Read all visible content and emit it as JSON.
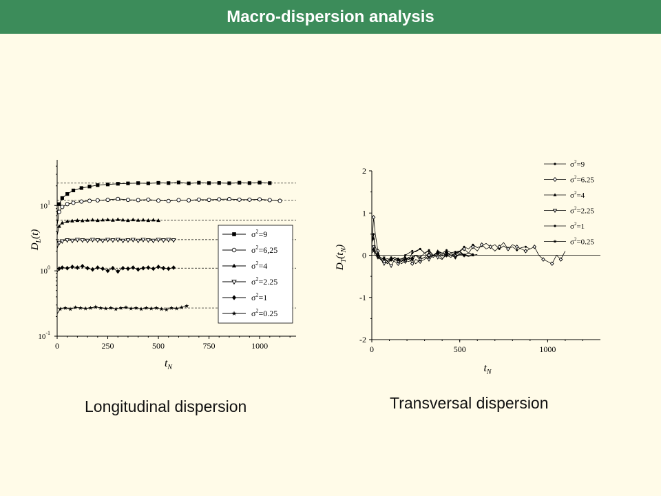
{
  "header": {
    "title": "Macro-dispersion analysis"
  },
  "captions": {
    "left": "Longitudinal dispersion",
    "right": "Transversal dispersion"
  },
  "chart_data": [
    {
      "type": "line",
      "yscale": "log",
      "xlim": [
        0,
        1180
      ],
      "ylim": [
        0.1,
        50
      ],
      "xticks": [
        0,
        250,
        500,
        750,
        1000
      ],
      "xlabel": "t_N",
      "ylabel": "D_L(t)",
      "yticks": [
        {
          "value": 10,
          "base": "10",
          "exp": "1"
        },
        {
          "value": 1,
          "base": "10",
          "exp": "0"
        },
        {
          "value": 0.1,
          "base": "10",
          "exp": "-1"
        }
      ],
      "legend_position": "bottom-right",
      "reference_lines": [
        22,
        12,
        6,
        3,
        1.1,
        0.27
      ],
      "series": [
        {
          "name": "σ²=9",
          "marker": "square-filled",
          "x": [
            0,
            10,
            25,
            50,
            80,
            120,
            160,
            200,
            250,
            300,
            350,
            400,
            450,
            500,
            550,
            600,
            650,
            700,
            750,
            800,
            850,
            900,
            950,
            1000,
            1050
          ],
          "y": [
            7,
            10.5,
            13,
            15,
            17,
            18.5,
            19.5,
            20.5,
            21,
            21.5,
            21.8,
            22,
            21.8,
            22.2,
            22,
            22.5,
            21.8,
            22.3,
            22,
            22.1,
            21.9,
            22.3,
            22,
            22.4,
            22
          ]
        },
        {
          "name": "σ²=6,25",
          "marker": "circle-open",
          "x": [
            0,
            10,
            25,
            50,
            80,
            120,
            160,
            200,
            250,
            300,
            350,
            400,
            450,
            500,
            550,
            600,
            650,
            700,
            750,
            800,
            850,
            900,
            950,
            1000,
            1050,
            1100
          ],
          "y": [
            5,
            8,
            9.5,
            10.5,
            11,
            11.5,
            11.8,
            12,
            12.2,
            12.6,
            12.2,
            12.1,
            12.3,
            11.9,
            11.7,
            12.1,
            12,
            12.3,
            12.2,
            12.4,
            12.5,
            12.3,
            12.3,
            12.4,
            12.1,
            11.8
          ]
        },
        {
          "name": "σ²=4",
          "marker": "triangle-up-filled",
          "x": [
            0,
            10,
            25,
            50,
            75,
            100,
            125,
            150,
            175,
            200,
            225,
            250,
            275,
            300,
            325,
            350,
            375,
            400,
            425,
            450,
            475,
            500
          ],
          "y": [
            3.5,
            4.8,
            5.4,
            5.7,
            5.8,
            5.9,
            5.85,
            5.95,
            6,
            5.9,
            6,
            6.05,
            5.95,
            6.1,
            6,
            5.9,
            6.05,
            5.95,
            6,
            5.9,
            6,
            5.9
          ]
        },
        {
          "name": "σ²=2.25",
          "marker": "triangle-down-open",
          "x": [
            0,
            10,
            25,
            50,
            75,
            100,
            125,
            150,
            175,
            200,
            225,
            250,
            275,
            300,
            325,
            350,
            375,
            400,
            425,
            450,
            475,
            500,
            525,
            550,
            575
          ],
          "y": [
            2.2,
            2.7,
            2.85,
            2.95,
            2.9,
            3,
            2.95,
            2.9,
            3,
            2.95,
            2.9,
            3,
            2.95,
            3,
            2.9,
            2.95,
            3,
            2.9,
            3,
            2.95,
            2.9,
            3,
            2.95,
            3,
            2.95
          ]
        },
        {
          "name": "σ²=1",
          "marker": "diamond-filled",
          "x": [
            0,
            10,
            25,
            50,
            75,
            100,
            125,
            150,
            175,
            200,
            225,
            250,
            275,
            300,
            325,
            350,
            375,
            400,
            425,
            450,
            475,
            500,
            525,
            550,
            575
          ],
          "y": [
            0.95,
            1.08,
            1.12,
            1.1,
            1.15,
            1.12,
            1.18,
            1.1,
            1.05,
            1.12,
            1.08,
            1.0,
            1.1,
            0.98,
            1.1,
            1.08,
            1.12,
            1.05,
            1.1,
            1.12,
            1.08,
            1.15,
            1.1,
            1.08,
            1.12
          ]
        },
        {
          "name": "σ²=0.25",
          "marker": "star",
          "x": [
            0,
            15,
            40,
            65,
            90,
            115,
            140,
            165,
            190,
            215,
            240,
            265,
            290,
            315,
            340,
            365,
            390,
            415,
            440,
            465,
            490,
            515,
            540,
            565,
            590,
            615,
            640
          ],
          "y": [
            0.22,
            0.26,
            0.27,
            0.26,
            0.275,
            0.27,
            0.265,
            0.27,
            0.28,
            0.27,
            0.265,
            0.27,
            0.26,
            0.27,
            0.275,
            0.265,
            0.27,
            0.26,
            0.27,
            0.265,
            0.27,
            0.26,
            0.255,
            0.27,
            0.265,
            0.275,
            0.29
          ]
        }
      ]
    },
    {
      "type": "line",
      "xlim": [
        0,
        1300
      ],
      "ylim": [
        -2,
        2
      ],
      "xticks": [
        0,
        500,
        1000
      ],
      "yticks": [
        2,
        1,
        0,
        -1,
        -2
      ],
      "xlabel": "t_N",
      "ylabel": "D_T(t_N)",
      "legend_position": "top-right",
      "reference_lines": [
        0
      ],
      "series": [
        {
          "name": "σ²=9",
          "marker": "dot",
          "x": [
            0,
            10,
            20,
            35,
            50,
            70,
            90,
            110,
            130,
            150,
            170,
            190,
            210,
            230,
            250,
            275,
            300,
            325,
            350,
            375,
            400,
            425,
            450,
            475,
            500,
            525,
            550,
            575,
            600,
            625,
            650,
            675,
            700,
            725,
            750,
            775,
            800,
            825,
            850,
            875,
            900
          ],
          "y": [
            0.3,
            0.5,
            0.1,
            -0.05,
            -0.1,
            -0.15,
            -0.12,
            -0.05,
            -0.1,
            -0.08,
            -0.15,
            0.0,
            0.05,
            0.1,
            0.08,
            0.15,
            0.05,
            0.12,
            0.0,
            0.08,
            0.05,
            0.12,
            0.06,
            0.08,
            0.1,
            0.2,
            0.15,
            0.25,
            0.18,
            0.22,
            0.28,
            0.2,
            0.25,
            0.15,
            0.22,
            0.15,
            0.2,
            0.12,
            0.18,
            0.2,
            0.15
          ]
        },
        {
          "name": "σ²=6.25",
          "marker": "diamond-open",
          "x": [
            0,
            10,
            20,
            35,
            50,
            70,
            90,
            110,
            130,
            150,
            170,
            190,
            210,
            230,
            250,
            275,
            300,
            325,
            350,
            375,
            400,
            425,
            450,
            475,
            500,
            525,
            550,
            575,
            600,
            625,
            650,
            675,
            700,
            725,
            750,
            775,
            800,
            825,
            850,
            875,
            900,
            925,
            950,
            975,
            1000,
            1025,
            1050,
            1075,
            1100
          ],
          "y": [
            0.2,
            0.9,
            0.5,
            0.1,
            -0.1,
            -0.15,
            -0.2,
            -0.1,
            -0.15,
            -0.2,
            -0.1,
            -0.15,
            -0.05,
            -0.2,
            -0.1,
            -0.15,
            -0.1,
            0.0,
            -0.05,
            0.05,
            -0.08,
            0.0,
            0.05,
            -0.02,
            0.1,
            0.15,
            0.05,
            0.2,
            0.1,
            0.25,
            0.15,
            0.2,
            0.1,
            0.2,
            0.3,
            0.15,
            0.25,
            0.2,
            0.15,
            0.1,
            0.15,
            0.2,
            0.0,
            -0.1,
            -0.15,
            -0.2,
            0.0,
            -0.1,
            0.1
          ]
        },
        {
          "name": "σ²=4",
          "marker": "triangle-up-filled",
          "x": [
            0,
            10,
            20,
            35,
            50,
            70,
            90,
            110,
            130,
            150,
            170,
            190,
            210,
            230,
            250,
            275,
            300,
            325,
            350,
            375,
            400,
            425,
            450,
            475,
            500,
            525,
            550,
            575
          ],
          "y": [
            0.3,
            0.4,
            0.2,
            0.05,
            -0.1,
            -0.08,
            -0.15,
            -0.1,
            -0.05,
            -0.12,
            -0.15,
            -0.08,
            -0.1,
            -0.05,
            0.0,
            -0.1,
            -0.05,
            0.05,
            -0.02,
            0.1,
            0.05,
            0.0,
            -0.05,
            0.05,
            0.08,
            0.0,
            0.05,
            0.02
          ]
        },
        {
          "name": "σ²=2.25",
          "marker": "triangle-down-open",
          "x": [
            0,
            10,
            20,
            35,
            50,
            70,
            90,
            110,
            130,
            150,
            170,
            190,
            210,
            230,
            250,
            275,
            300,
            325,
            350,
            375,
            400,
            425,
            450,
            475,
            500,
            525,
            550
          ],
          "y": [
            0.1,
            0.2,
            0.05,
            -0.05,
            -0.1,
            -0.2,
            -0.15,
            -0.25,
            -0.1,
            -0.15,
            -0.2,
            -0.12,
            -0.15,
            -0.1,
            -0.2,
            -0.1,
            -0.05,
            -0.1,
            0.0,
            -0.05,
            -0.1,
            0.05,
            0.0,
            -0.05,
            0.05,
            0.0,
            -0.02
          ]
        },
        {
          "name": "σ²=1",
          "marker": "dot",
          "x": [
            0,
            10,
            20,
            35,
            50,
            70,
            90,
            110,
            130,
            150,
            170,
            190,
            210,
            230,
            250,
            275,
            300,
            325,
            350,
            375,
            400,
            425,
            450,
            475,
            500,
            525,
            550,
            575
          ],
          "y": [
            0.1,
            0.15,
            0.05,
            0.0,
            -0.05,
            -0.1,
            -0.08,
            -0.12,
            -0.05,
            -0.1,
            -0.08,
            -0.05,
            -0.1,
            0.05,
            0.1,
            0.15,
            0.05,
            0.1,
            0.0,
            0.05,
            0.02,
            0.08,
            0.0,
            0.05,
            0.1,
            0.0,
            0.05,
            0.0
          ]
        },
        {
          "name": "σ²=0.25",
          "marker": "star",
          "x": [
            0,
            10,
            20,
            35,
            50,
            70,
            90,
            110,
            130,
            150,
            170,
            190,
            210,
            230,
            250,
            275,
            300,
            325,
            350,
            375,
            400,
            425,
            450,
            475,
            500,
            525,
            550,
            575,
            600
          ],
          "y": [
            0.05,
            0.1,
            0.0,
            -0.05,
            -0.1,
            -0.05,
            -0.15,
            -0.1,
            -0.05,
            -0.12,
            -0.08,
            -0.1,
            -0.05,
            -0.1,
            0.0,
            -0.05,
            0.05,
            -0.05,
            0.0,
            0.08,
            -0.02,
            0.05,
            0.0,
            -0.05,
            0.02,
            0.0,
            -0.03,
            0.0,
            0.02
          ]
        }
      ]
    }
  ]
}
